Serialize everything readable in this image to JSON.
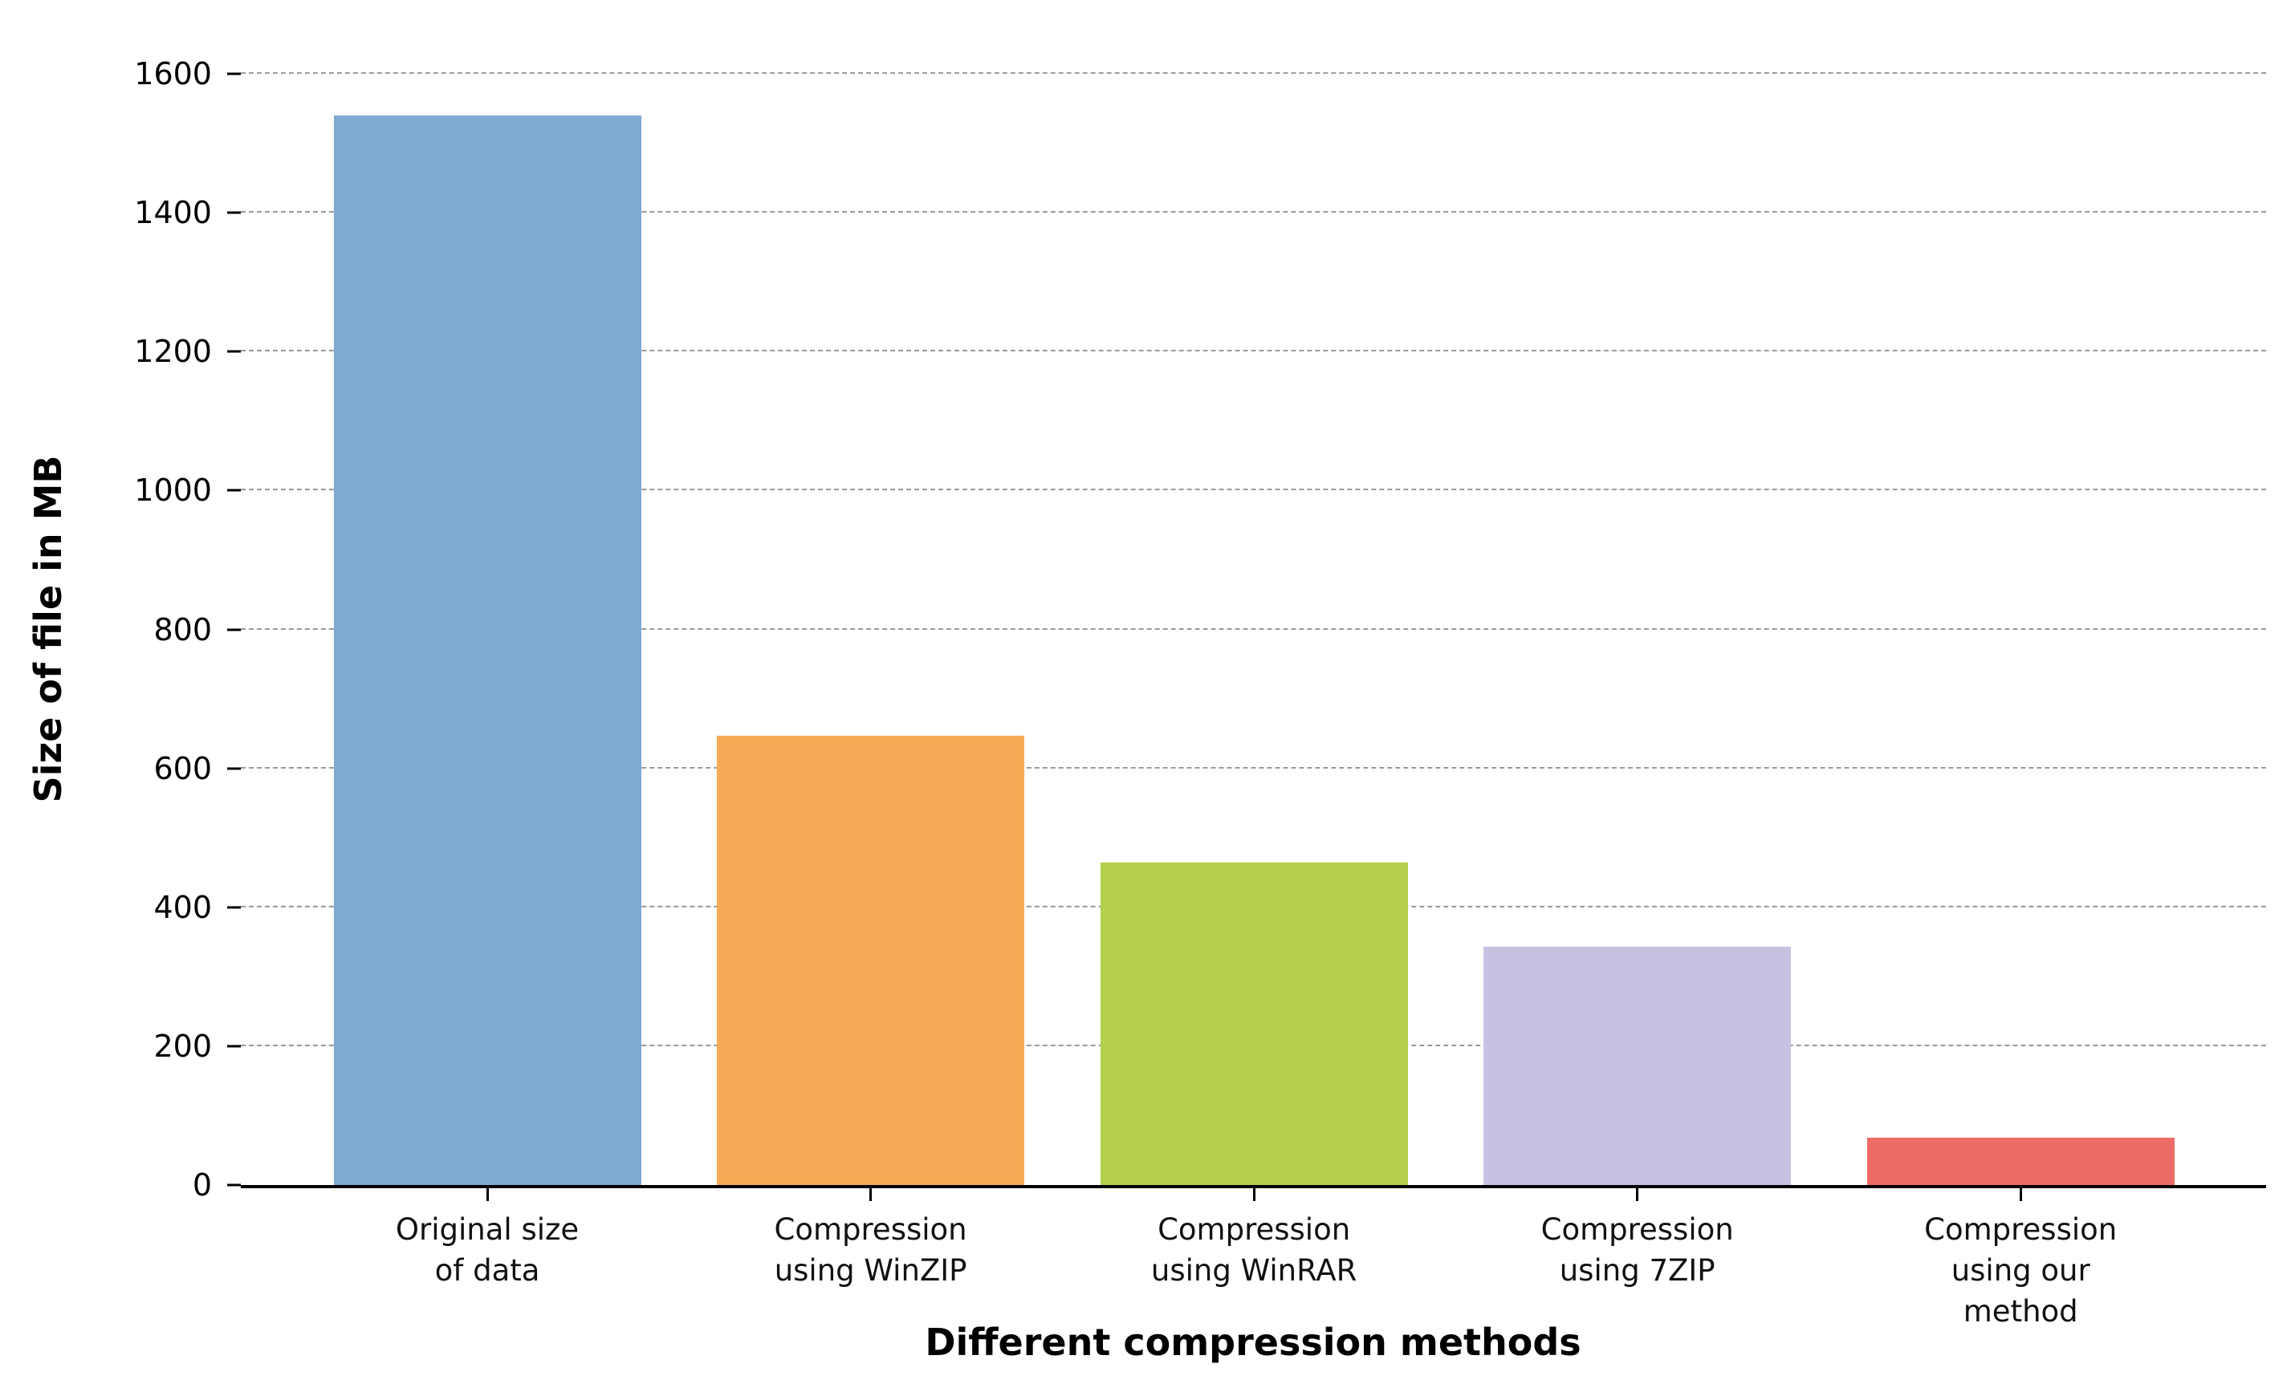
{
  "chart_data": {
    "type": "bar",
    "xlabel": "Different compression methods",
    "ylabel": "Size of file in MB",
    "categories": [
      "Original size\nof data",
      "Compression\nusing WinZIP",
      "Compression\nusing WinRAR",
      "Compression\nusing 7ZIP",
      "Compression\nusing our method"
    ],
    "values": [
      1540,
      647,
      464,
      343,
      68
    ],
    "bar_colors": [
      "#7ea9d0",
      "#f5ab55",
      "#b5cf4f",
      "#c7c1e2",
      "#ee6c66"
    ],
    "ylim": [
      0,
      1600
    ],
    "y_ticks": [
      0,
      200,
      400,
      600,
      800,
      1000,
      1200,
      1400,
      1600
    ],
    "grid": "horizontal-dashed",
    "legend": "none"
  },
  "colors": {
    "grid": "#999999",
    "axis": "#000000",
    "text": "#000000",
    "background": "#ffffff"
  }
}
